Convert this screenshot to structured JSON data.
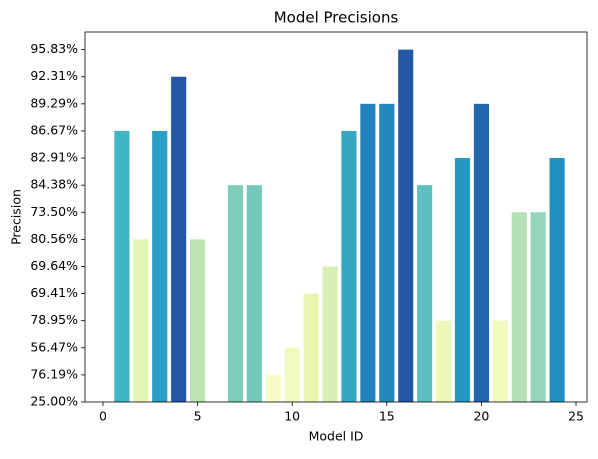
{
  "chart_data": {
    "type": "bar",
    "title": "Model Precisions",
    "x_label": "Model ID",
    "y_label": "Precision",
    "x": [
      1,
      2,
      3,
      4,
      5,
      6,
      7,
      8,
      9,
      10,
      11,
      12,
      13,
      14,
      15,
      16,
      17,
      18,
      19,
      20,
      21,
      22,
      23,
      24
    ],
    "values": [
      10,
      6,
      10,
      12,
      6,
      0,
      8,
      8,
      1,
      2,
      4,
      5,
      10,
      11,
      11,
      13,
      8,
      3,
      9,
      11,
      3,
      7,
      7,
      9
    ],
    "colors": [
      "#40b5c4",
      "#e5f5b2",
      "#2c9ec3",
      "#2357a6",
      "#bde5b4",
      "#ffffd9",
      "#7fcdbb",
      "#74c9bd",
      "#f8fcc9",
      "#f3fac0",
      "#e9f6b1",
      "#d7efb3",
      "#35a7c2",
      "#2384bd",
      "#2289bd",
      "#2358a6",
      "#5dc0c0",
      "#eef8b6",
      "#2498c1",
      "#2165ac",
      "#f2f9bc",
      "#b5e2b5",
      "#95d5b9",
      "#1e91c0"
    ],
    "xlim": [
      -0.95,
      25.58
    ],
    "xticks": [
      0,
      5,
      10,
      15,
      20,
      25
    ],
    "ylim": [
      0,
      13.65
    ],
    "yticks": [
      {
        "value": 0,
        "label": "25.00%"
      },
      {
        "value": 1,
        "label": "76.19%"
      },
      {
        "value": 2,
        "label": "56.47%"
      },
      {
        "value": 3,
        "label": "78.95%"
      },
      {
        "value": 4,
        "label": "69.41%"
      },
      {
        "value": 5,
        "label": "69.64%"
      },
      {
        "value": 6,
        "label": "80.56%"
      },
      {
        "value": 7,
        "label": "73.50%"
      },
      {
        "value": 8,
        "label": "84.38%"
      },
      {
        "value": 9,
        "label": "82.91%"
      },
      {
        "value": 10,
        "label": "86.67%"
      },
      {
        "value": 11,
        "label": "89.29%"
      },
      {
        "value": 12,
        "label": "92.31%"
      },
      {
        "value": 13,
        "label": "95.83%"
      }
    ],
    "bar_width": 0.8
  }
}
